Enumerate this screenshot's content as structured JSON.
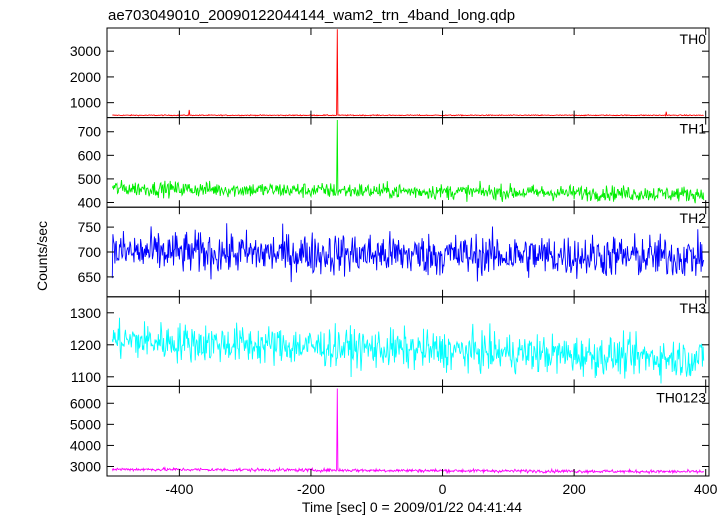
{
  "chart_data": {
    "type": "line",
    "title": "ae703049010_20090122044144_wam2_trn_4band_long.qdp",
    "xlabel": "Time [sec] 0 = 2009/01/22 04:41:44",
    "ylabel": "Counts/sec",
    "xlim": [
      -510,
      405
    ],
    "x_ticks": [
      -400,
      -200,
      0,
      200,
      400
    ],
    "panels": [
      {
        "name": "TH0",
        "color": "#ff0000",
        "ylim": [
          420,
          3900
        ],
        "y_ticks": [
          1000,
          2000,
          3000
        ],
        "baseline": 510,
        "noise": 18,
        "spike": {
          "x": -160,
          "y": 3850
        },
        "bumps": [
          {
            "x": -385,
            "y": 720
          },
          {
            "x": 340,
            "y": 650
          }
        ]
      },
      {
        "name": "TH1",
        "color": "#00ee00",
        "ylim": [
          380,
          760
        ],
        "y_ticks": [
          400,
          500,
          600,
          700
        ],
        "baseline": 460,
        "trend": -25,
        "noise": 32,
        "spike": {
          "x": -160,
          "y": 750
        }
      },
      {
        "name": "TH2",
        "color": "#0000ff",
        "ylim": [
          610,
          790
        ],
        "y_ticks": [
          650,
          700,
          750
        ],
        "baseline": 700,
        "trend": -10,
        "noise": 42
      },
      {
        "name": "TH3",
        "color": "#00ffff",
        "ylim": [
          1070,
          1350
        ],
        "y_ticks": [
          1100,
          1200,
          1300
        ],
        "baseline": 1215,
        "trend": -60,
        "noise": 60
      },
      {
        "name": "TH0123",
        "color": "#ff00ff",
        "ylim": [
          2550,
          6800
        ],
        "y_ticks": [
          3000,
          4000,
          5000,
          6000
        ],
        "baseline": 2870,
        "trend": -120,
        "noise": 75,
        "spike": {
          "x": -160,
          "y": 6700
        }
      }
    ]
  }
}
